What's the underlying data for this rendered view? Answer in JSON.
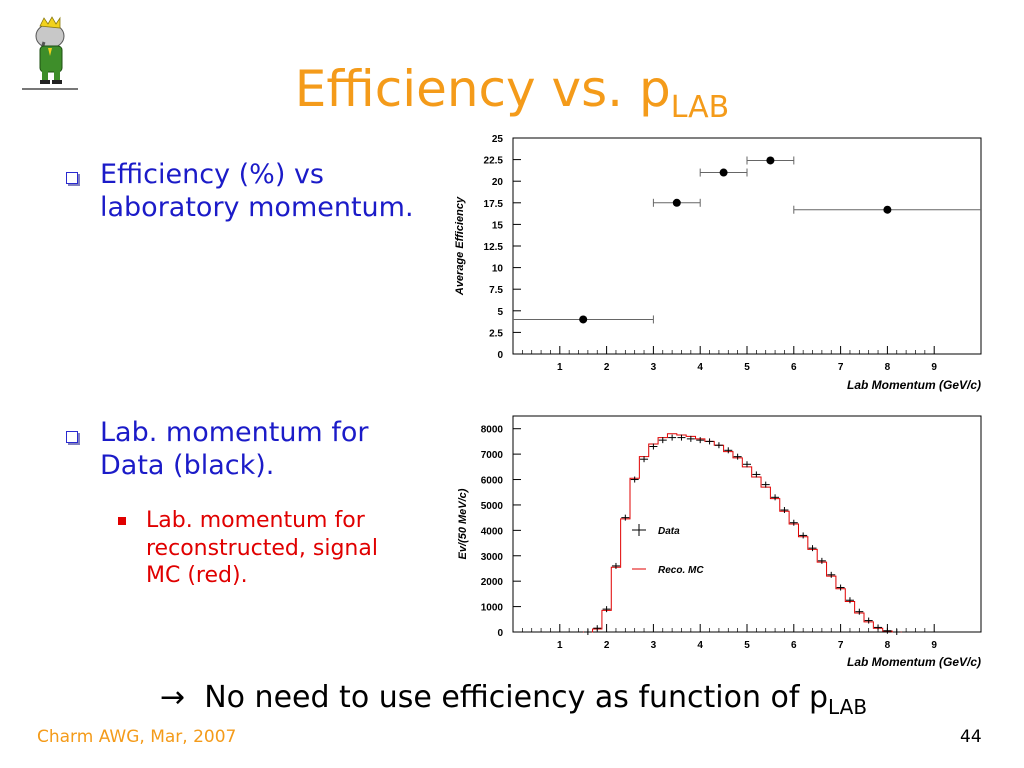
{
  "title": {
    "main": "Efficiency vs. p",
    "sub": "LAB"
  },
  "bullets": [
    {
      "text_line1": "Efficiency (%) vs",
      "text_line2": "laboratory momentum."
    },
    {
      "text_line1": "Lab. momentum for",
      "text_line2": "Data (black)."
    }
  ],
  "sub_bullet": {
    "line1": "Lab. momentum for",
    "line2": "reconstructed, signal",
    "line3": "MC (red)."
  },
  "conclusion": {
    "arrow": "→",
    "text": "No need to use efficiency as function of p",
    "sub": "LAB"
  },
  "footer": {
    "left": "Charm AWG, Mar, 2007",
    "page": "44"
  },
  "colors": {
    "title": "#f49b1a",
    "bullet": "#1b1bc8",
    "sub_bullet": "#e00000",
    "mc": "#e00000",
    "data": "#000000"
  },
  "chart_data": [
    {
      "type": "scatter",
      "xlabel": "Lab Momentum (GeV/c)",
      "ylabel": "Average Efficiency",
      "xlim": [
        0,
        10
      ],
      "ylim": [
        0,
        25
      ],
      "xticks": [
        "1",
        "2",
        "3",
        "4",
        "5",
        "6",
        "7",
        "8",
        "9"
      ],
      "yticks": [
        "0",
        "2.5",
        "5",
        "7.5",
        "10",
        "12.5",
        "15",
        "17.5",
        "20",
        "22.5",
        "25"
      ],
      "points": [
        {
          "x": 1.5,
          "y": 4.0,
          "xerr": [
            0,
            3
          ]
        },
        {
          "x": 3.5,
          "y": 17.5,
          "xerr": [
            3,
            4
          ]
        },
        {
          "x": 4.5,
          "y": 21.0,
          "xerr": [
            4,
            5
          ]
        },
        {
          "x": 5.5,
          "y": 22.4,
          "xerr": [
            5,
            6
          ]
        },
        {
          "x": 8.0,
          "y": 16.7,
          "xerr": [
            6,
            10
          ]
        }
      ]
    },
    {
      "type": "line",
      "xlabel": "Lab Momentum (GeV/c)",
      "ylabel": "Ev/(50 MeV/c)",
      "xlim": [
        0,
        10
      ],
      "ylim": [
        0,
        8500
      ],
      "xticks": [
        "1",
        "2",
        "3",
        "4",
        "5",
        "6",
        "7",
        "8",
        "9"
      ],
      "yticks": [
        "0",
        "1000",
        "2000",
        "3000",
        "4000",
        "5000",
        "6000",
        "7000",
        "8000"
      ],
      "legend": [
        {
          "name": "Data",
          "color": "#000000"
        },
        {
          "name": "Reco. MC",
          "color": "#e00000"
        }
      ],
      "series": [
        {
          "name": "Data",
          "x": [
            1.6,
            1.8,
            2.0,
            2.2,
            2.4,
            2.6,
            2.8,
            3.0,
            3.2,
            3.4,
            3.6,
            3.8,
            4.0,
            4.2,
            4.4,
            4.6,
            4.8,
            5.0,
            5.2,
            5.4,
            5.6,
            5.8,
            6.0,
            6.2,
            6.4,
            6.6,
            6.8,
            7.0,
            7.2,
            7.4,
            7.6,
            7.8,
            8.0,
            8.2
          ],
          "y": [
            0,
            150,
            900,
            2600,
            4500,
            6000,
            6800,
            7300,
            7550,
            7650,
            7650,
            7600,
            7550,
            7500,
            7350,
            7150,
            6900,
            6600,
            6200,
            5800,
            5300,
            4800,
            4300,
            3800,
            3300,
            2800,
            2250,
            1750,
            1250,
            800,
            450,
            180,
            50,
            0
          ]
        },
        {
          "name": "Reco. MC",
          "x": [
            1.6,
            1.8,
            2.0,
            2.2,
            2.4,
            2.6,
            2.8,
            3.0,
            3.2,
            3.4,
            3.6,
            3.8,
            4.0,
            4.2,
            4.4,
            4.6,
            4.8,
            5.0,
            5.2,
            5.4,
            5.6,
            5.8,
            6.0,
            6.2,
            6.4,
            6.6,
            6.8,
            7.0,
            7.2,
            7.4,
            7.6,
            7.8,
            8.0,
            8.2
          ],
          "y": [
            0,
            120,
            850,
            2550,
            4450,
            6050,
            6900,
            7400,
            7650,
            7800,
            7750,
            7700,
            7600,
            7500,
            7350,
            7100,
            6850,
            6500,
            6100,
            5700,
            5250,
            4750,
            4250,
            3750,
            3250,
            2750,
            2200,
            1700,
            1200,
            750,
            400,
            150,
            40,
            0
          ]
        }
      ]
    }
  ]
}
